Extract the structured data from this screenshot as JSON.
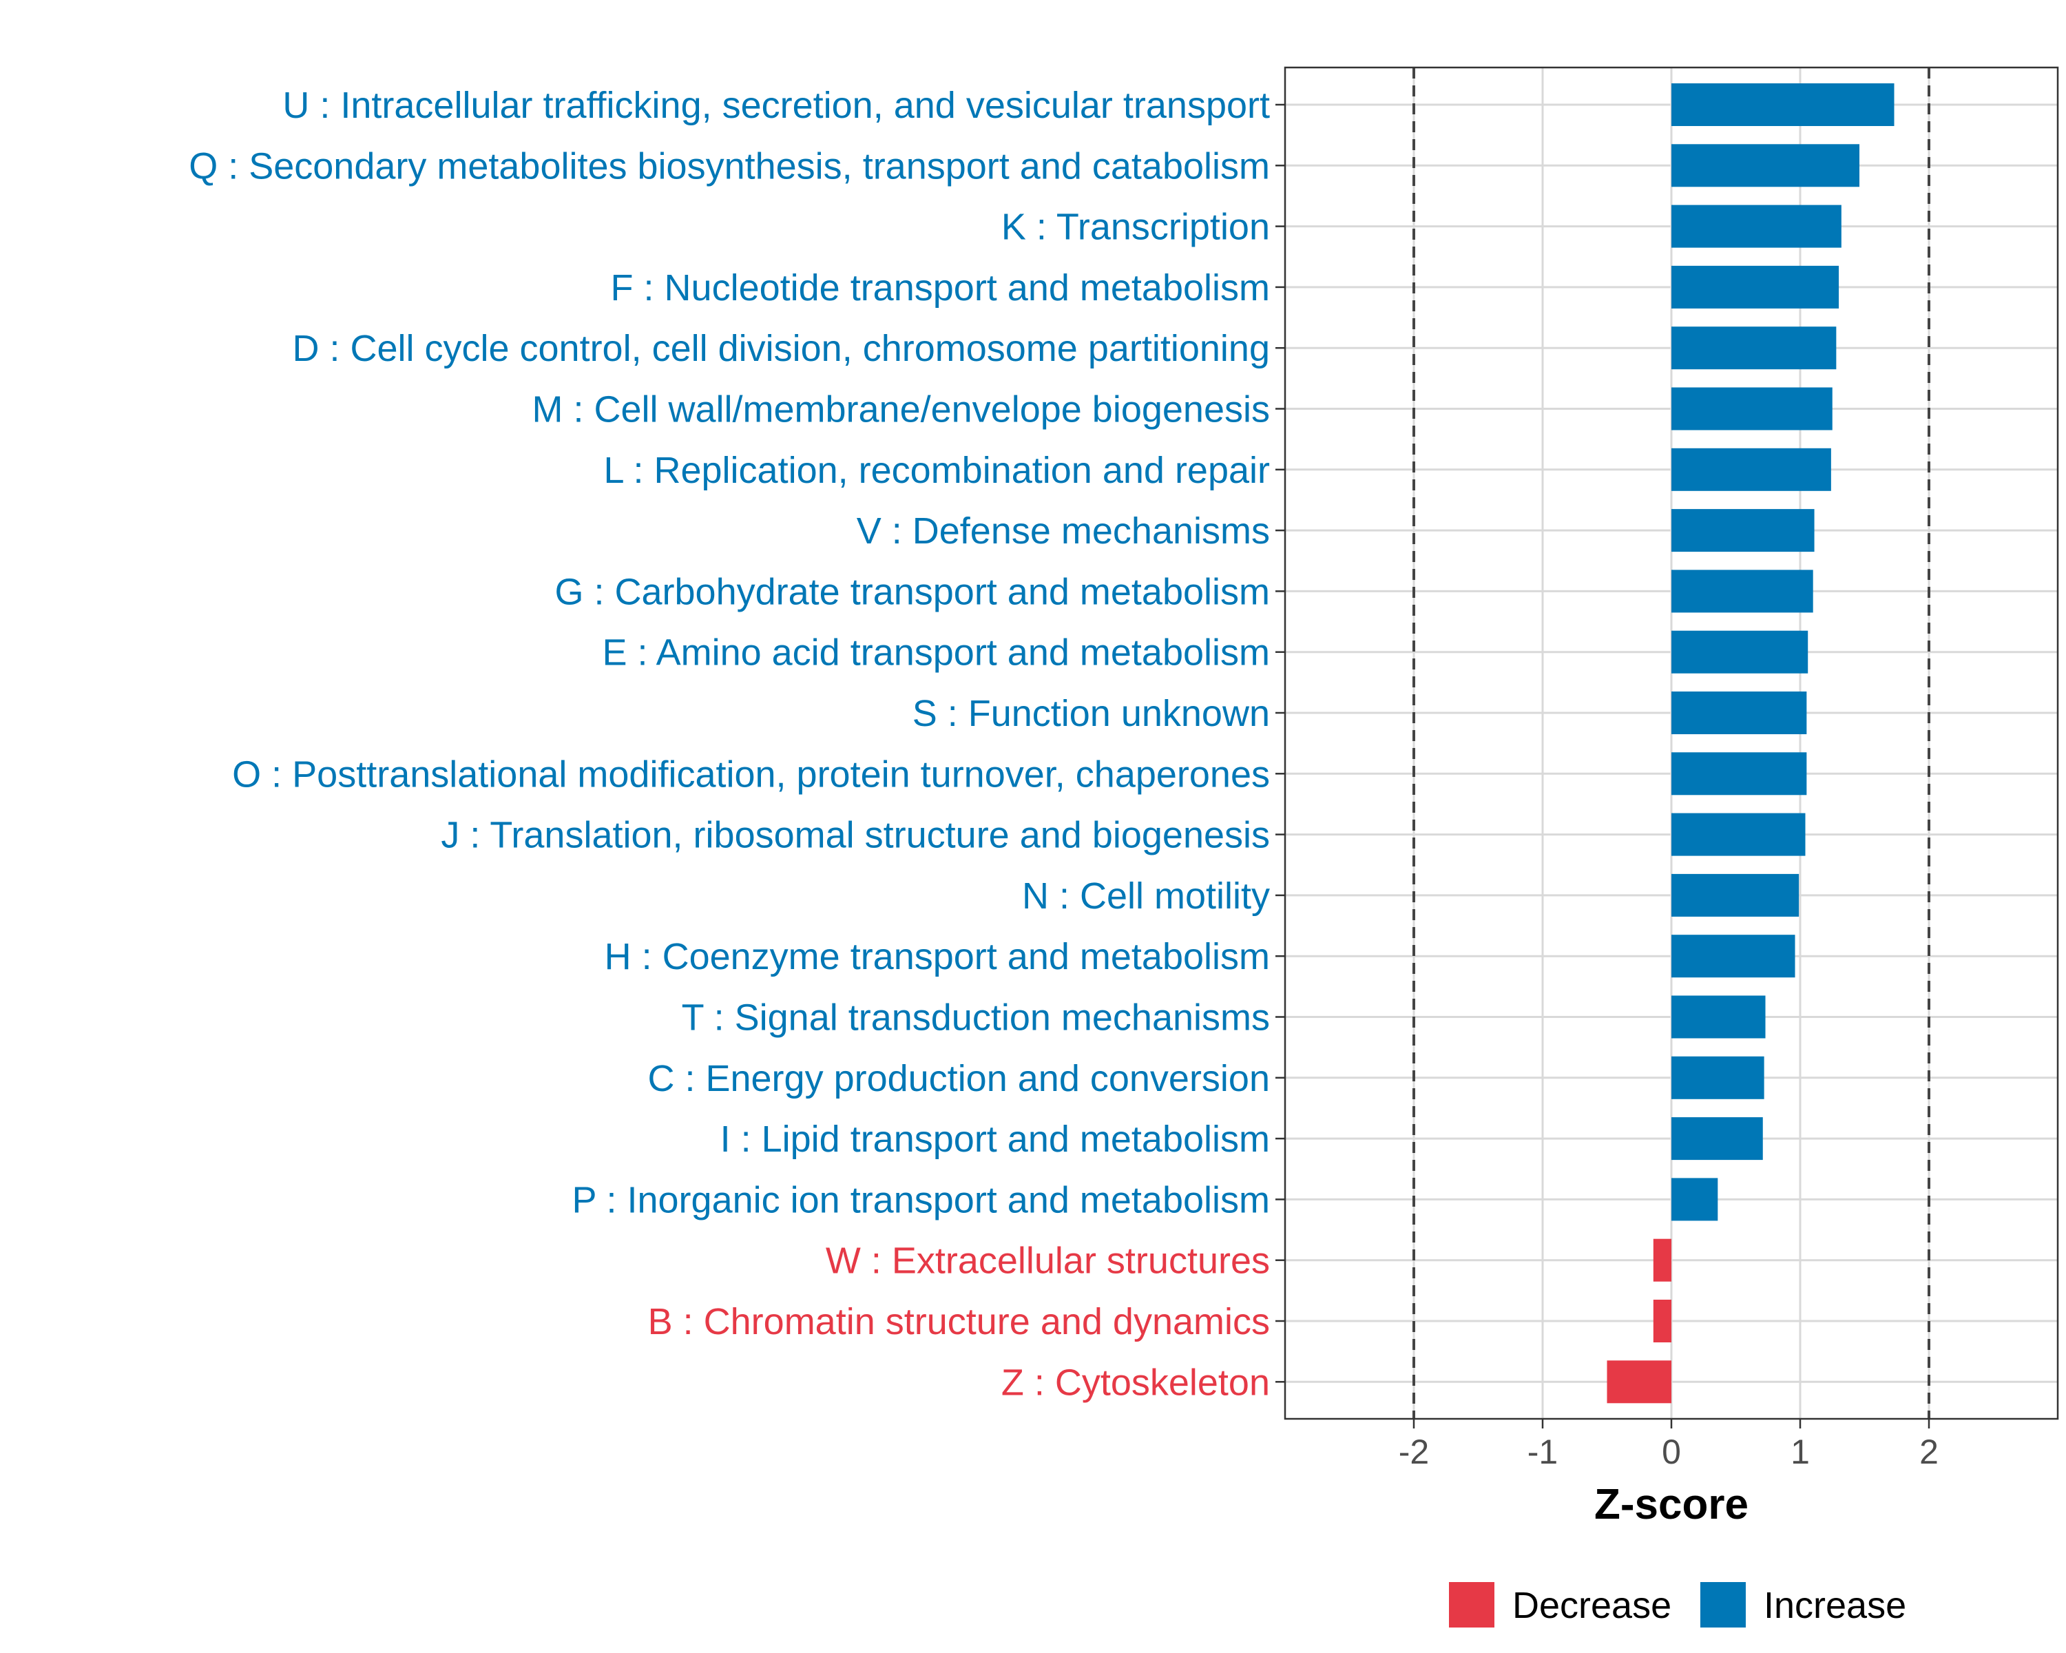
{
  "chart_data": {
    "type": "bar",
    "orientation": "horizontal",
    "title": "",
    "xlabel": "Z-score",
    "ylabel": "",
    "xlim": [
      -3,
      3
    ],
    "xticks": [
      -2,
      -1,
      0,
      1,
      2
    ],
    "xtick_labels": [
      "-2",
      "-1",
      "0",
      "1",
      "2"
    ],
    "reference_lines": [
      -2,
      2
    ],
    "grid": true,
    "legend_position": "bottom",
    "legend": [
      {
        "name": "Decrease",
        "color": "#E63946"
      },
      {
        "name": "Increase",
        "color": "#0077B6"
      }
    ],
    "categories": [
      {
        "label": "U : Intracellular trafficking, secretion, and vesicular transport",
        "value": 1.73,
        "direction": "Increase"
      },
      {
        "label": "Q : Secondary metabolites biosynthesis, transport and catabolism",
        "value": 1.46,
        "direction": "Increase"
      },
      {
        "label": "K : Transcription",
        "value": 1.32,
        "direction": "Increase"
      },
      {
        "label": "F : Nucleotide transport and metabolism",
        "value": 1.3,
        "direction": "Increase"
      },
      {
        "label": "D : Cell cycle control, cell division, chromosome partitioning",
        "value": 1.28,
        "direction": "Increase"
      },
      {
        "label": "M : Cell wall/membrane/envelope biogenesis",
        "value": 1.25,
        "direction": "Increase"
      },
      {
        "label": "L : Replication, recombination and repair",
        "value": 1.24,
        "direction": "Increase"
      },
      {
        "label": "V : Defense mechanisms",
        "value": 1.11,
        "direction": "Increase"
      },
      {
        "label": "G : Carbohydrate transport and metabolism",
        "value": 1.1,
        "direction": "Increase"
      },
      {
        "label": "E : Amino acid transport and metabolism",
        "value": 1.06,
        "direction": "Increase"
      },
      {
        "label": "S : Function unknown",
        "value": 1.05,
        "direction": "Increase"
      },
      {
        "label": "O : Posttranslational modification, protein turnover, chaperones",
        "value": 1.05,
        "direction": "Increase"
      },
      {
        "label": "J : Translation, ribosomal structure and biogenesis",
        "value": 1.04,
        "direction": "Increase"
      },
      {
        "label": "N : Cell motility",
        "value": 0.99,
        "direction": "Increase"
      },
      {
        "label": "H : Coenzyme transport and metabolism",
        "value": 0.96,
        "direction": "Increase"
      },
      {
        "label": "T : Signal transduction mechanisms",
        "value": 0.73,
        "direction": "Increase"
      },
      {
        "label": "C : Energy production and conversion",
        "value": 0.72,
        "direction": "Increase"
      },
      {
        "label": "I : Lipid transport and metabolism",
        "value": 0.71,
        "direction": "Increase"
      },
      {
        "label": "P : Inorganic ion transport and metabolism",
        "value": 0.36,
        "direction": "Increase"
      },
      {
        "label": "W : Extracellular structures",
        "value": -0.14,
        "direction": "Decrease"
      },
      {
        "label": "B : Chromatin structure and dynamics",
        "value": -0.14,
        "direction": "Decrease"
      },
      {
        "label": "Z : Cytoskeleton",
        "value": -0.5,
        "direction": "Decrease"
      }
    ]
  }
}
